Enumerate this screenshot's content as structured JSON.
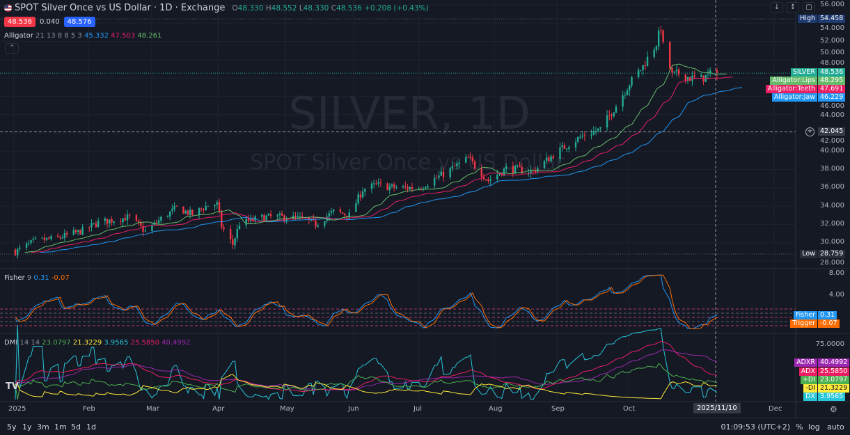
{
  "header": {
    "title": "SPOT Silver Once vs US Dollar · 1D · Exchange",
    "flag_icon": "us-flag-icon",
    "open_label": "O",
    "open": "48.330",
    "high_label": "H",
    "high": "48.552",
    "low_label": "L",
    "low": "48.330",
    "close_label": "C",
    "close": "48.536",
    "change": "+0.208 (+0.43%)"
  },
  "trade": {
    "sell": "48.536",
    "spread": "0.040",
    "buy": "48.576"
  },
  "alligator": {
    "name": "Alligator",
    "params": "21 13 8 8 5 3",
    "jaw": "45.332",
    "teeth": "47.503",
    "lips": "48.261"
  },
  "fisher": {
    "name": "Fisher",
    "params": "9",
    "fisher": "0.31",
    "trigger": "-0.07"
  },
  "dmi": {
    "name": "DMI",
    "params": "14 14",
    "plus_di": "23.0797",
    "minus_di": "21.3229",
    "dx": "3.9565",
    "adx": "25.5850",
    "adxr": "40.4992"
  },
  "watermark": {
    "symbol": "SILVER, 1D",
    "description": "SPOT Silver Once vs US Dollar"
  },
  "price_axis": {
    "ticks": [
      "56.000",
      "54.000",
      "52.000",
      "50.000",
      "48.000",
      "46.000",
      "44.000",
      "42.000",
      "40.000",
      "38.000",
      "36.000",
      "34.000",
      "32.000",
      "30.000",
      "28.000"
    ],
    "high_label": "High",
    "high_value": "54.458",
    "low_label": "Low",
    "low_value": "28.759",
    "crosshair_value": "42.045",
    "silver_label": "SILVER",
    "silver_value": "48.536",
    "lips_label": "Alligator:Lips",
    "lips_value": "48.295",
    "teeth_label": "Alligator:Teeth",
    "teeth_value": "47.691",
    "jaw_label": "Alligator:Jaw",
    "jaw_value": "46.229"
  },
  "fisher_axis": {
    "ticks": [
      "8.00",
      "4.00"
    ],
    "fisher_label": "Fisher",
    "fisher_value": "0.31",
    "trigger_label": "Trigger",
    "trigger_value": "-0.07"
  },
  "dmi_axis": {
    "ticks": [
      "75.0000"
    ],
    "adxr_label": "ADXR",
    "adxr_value": "40.4992",
    "adx_label": "ADX",
    "adx_value": "25.5850",
    "pdi_label": "+DI",
    "pdi_value": "23.0797",
    "mdi_label": "-DI",
    "mdi_value": "21.3229",
    "dx_label": "DX",
    "dx_value": "3.9565"
  },
  "time_axis": {
    "labels": [
      "2025",
      "Feb",
      "Mar",
      "Apr",
      "May",
      "Jun",
      "Jul",
      "Aug",
      "Sep",
      "Oct",
      "Dec"
    ],
    "crosshair_date": "2025/11/10"
  },
  "bottom": {
    "ranges": [
      "5y",
      "1y",
      "3m",
      "1m",
      "5d",
      "1d"
    ],
    "clock": "01:09:53 (UTC+2)",
    "percent": "%",
    "log": "log",
    "auto": "auto"
  },
  "colors": {
    "up": "#22ab94",
    "down": "#f23645",
    "jaw": "#2196f3",
    "teeth": "#e91e63",
    "lips": "#66bb6a",
    "fisher": "#2196f3",
    "trigger": "#ff6d00",
    "adxr": "#9c27b0",
    "adx": "#e91e63",
    "pdi": "#4caf50",
    "mdi": "#ffeb3b",
    "dx": "#26c6da"
  },
  "chart_data": {
    "type": "candlestick",
    "interval": "1D",
    "ylim": [
      28,
      56
    ],
    "grid": true,
    "approx_close_path": [
      [
        "2025-01-01",
        29.0
      ],
      [
        "2025-01-10",
        30.2
      ],
      [
        "2025-01-20",
        30.5
      ],
      [
        "2025-01-31",
        31.3
      ],
      [
        "2025-02-07",
        32.2
      ],
      [
        "2025-02-14",
        32.5
      ],
      [
        "2025-02-21",
        32.8
      ],
      [
        "2025-02-28",
        31.2
      ],
      [
        "2025-03-07",
        32.6
      ],
      [
        "2025-03-14",
        33.8
      ],
      [
        "2025-03-21",
        33.1
      ],
      [
        "2025-03-28",
        34.1
      ],
      [
        "2025-04-01",
        34.2
      ],
      [
        "2025-04-03",
        31.8
      ],
      [
        "2025-04-08",
        29.8
      ],
      [
        "2025-04-11",
        32.1
      ],
      [
        "2025-04-22",
        32.8
      ],
      [
        "2025-04-30",
        32.8
      ],
      [
        "2025-05-09",
        32.6
      ],
      [
        "2025-05-15",
        32.0
      ],
      [
        "2025-05-23",
        33.4
      ],
      [
        "2025-05-30",
        33.0
      ],
      [
        "2025-06-05",
        35.8
      ],
      [
        "2025-06-11",
        36.3
      ],
      [
        "2025-06-20",
        36.0
      ],
      [
        "2025-06-30",
        36.0
      ],
      [
        "2025-07-11",
        37.5
      ],
      [
        "2025-07-22",
        39.2
      ],
      [
        "2025-07-31",
        36.8
      ],
      [
        "2025-08-08",
        38.1
      ],
      [
        "2025-08-20",
        37.8
      ],
      [
        "2025-08-29",
        39.6
      ],
      [
        "2025-09-05",
        40.8
      ],
      [
        "2025-09-12",
        41.8
      ],
      [
        "2025-09-19",
        42.4
      ],
      [
        "2025-09-26",
        45.0
      ],
      [
        "2025-10-02",
        47.4
      ],
      [
        "2025-10-08",
        49.3
      ],
      [
        "2025-10-14",
        51.8
      ],
      [
        "2025-10-16",
        53.6
      ],
      [
        "2025-10-17",
        51.5
      ],
      [
        "2025-10-21",
        48.3
      ],
      [
        "2025-10-24",
        48.5
      ],
      [
        "2025-10-29",
        48.0
      ],
      [
        "2025-11-03",
        47.9
      ],
      [
        "2025-11-07",
        48.4
      ],
      [
        "2025-11-10",
        48.536
      ]
    ]
  }
}
